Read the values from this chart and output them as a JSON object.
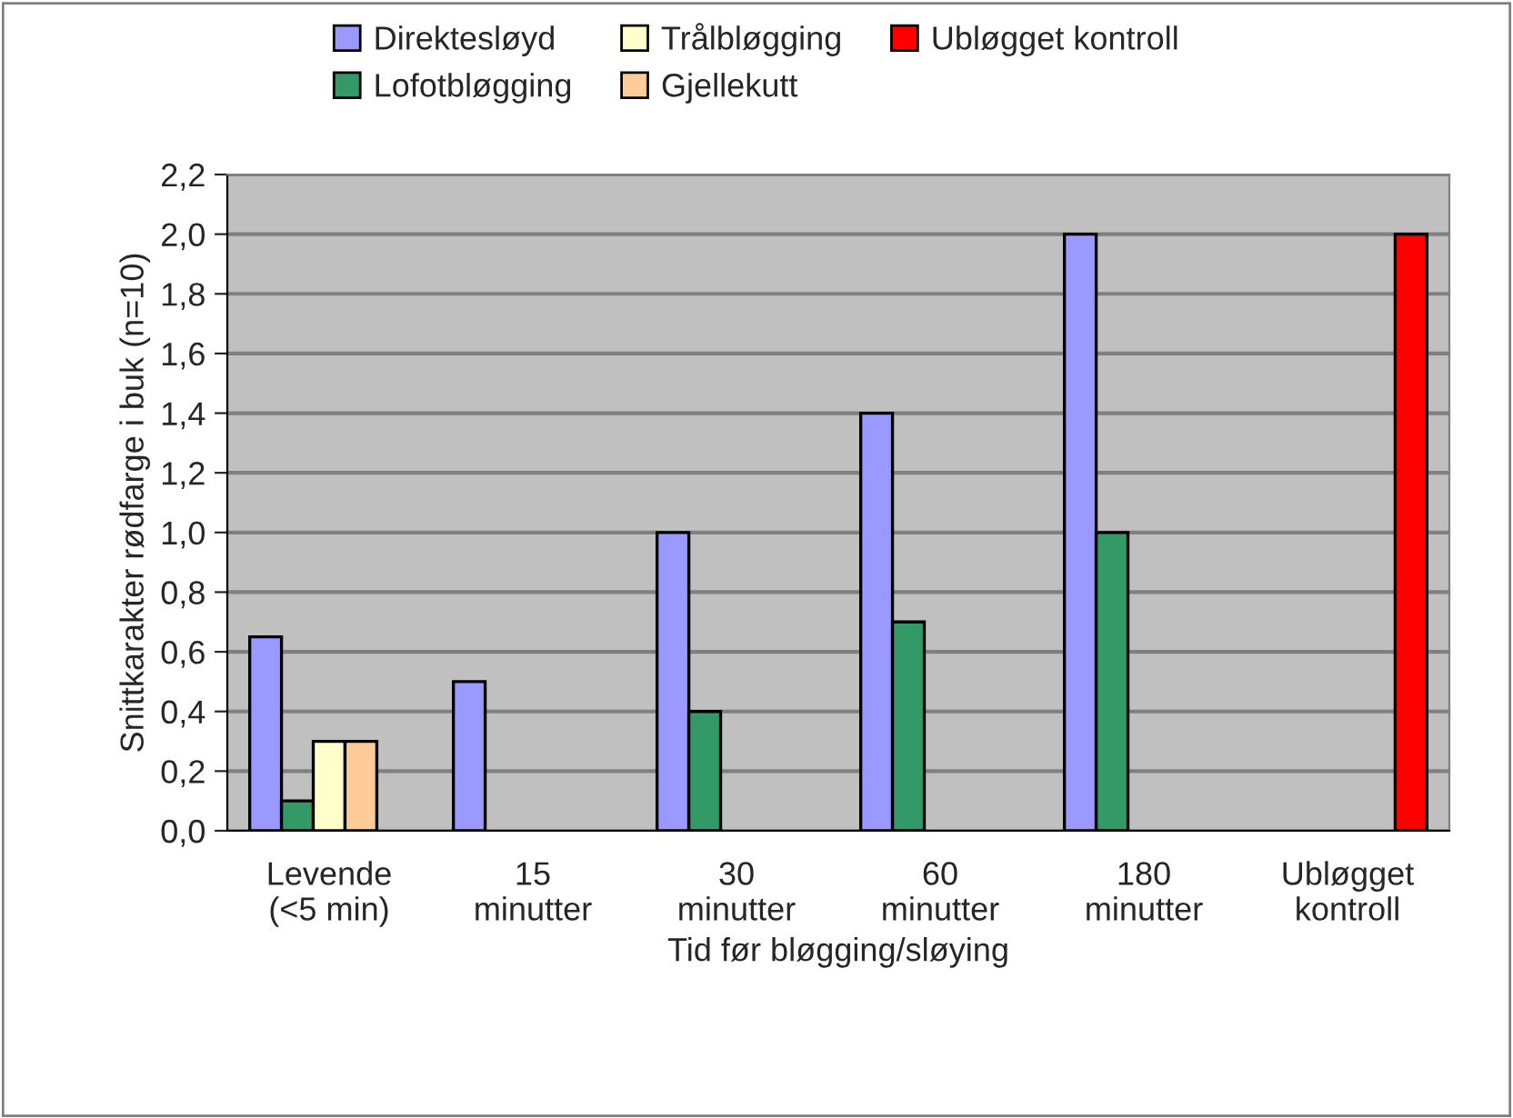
{
  "chart_data": {
    "type": "bar",
    "xlabel": "Tid før bløgging/sløying",
    "ylabel": "Snittkarakter rødfarge i buk (n=10)",
    "categories": [
      "Levende\n(<5 min)",
      "15\nminutter",
      "30\nminutter",
      "60\nminutter",
      "180\nminutter",
      "Ubløgget\nkontroll"
    ],
    "series": [
      {
        "name": "Direktesløyd",
        "color": "#9999ff",
        "values": [
          0.65,
          0.5,
          1.0,
          1.4,
          2.0,
          null
        ]
      },
      {
        "name": "Lofotbløgging",
        "color": "#339966",
        "values": [
          0.1,
          null,
          0.4,
          0.7,
          1.0,
          null
        ]
      },
      {
        "name": "Trålbløgging",
        "color": "#ffffcc",
        "values": [
          0.3,
          null,
          null,
          null,
          null,
          null
        ]
      },
      {
        "name": "Gjellekutt",
        "color": "#ffcc99",
        "values": [
          0.3,
          null,
          null,
          null,
          null,
          null
        ]
      },
      {
        "name": "Ubløgget kontroll",
        "color": "#ff0000",
        "values": [
          null,
          null,
          null,
          null,
          null,
          2.0
        ]
      }
    ],
    "ylim": [
      0,
      2.2
    ],
    "yticks": [
      {
        "value": 0,
        "label": "0,0"
      },
      {
        "value": 0.2,
        "label": "0,2"
      },
      {
        "value": 0.4,
        "label": "0,4"
      },
      {
        "value": 0.6,
        "label": "0,6"
      },
      {
        "value": 0.8,
        "label": "0,8"
      },
      {
        "value": 1.0,
        "label": "1,0"
      },
      {
        "value": 1.2,
        "label": "1,2"
      },
      {
        "value": 1.4,
        "label": "1,4"
      },
      {
        "value": 1.6,
        "label": "1,6"
      },
      {
        "value": 1.8,
        "label": "1,8"
      },
      {
        "value": 2.0,
        "label": "2,0"
      },
      {
        "value": 2.2,
        "label": "2,2"
      }
    ],
    "grid": "y",
    "legend": "top"
  }
}
